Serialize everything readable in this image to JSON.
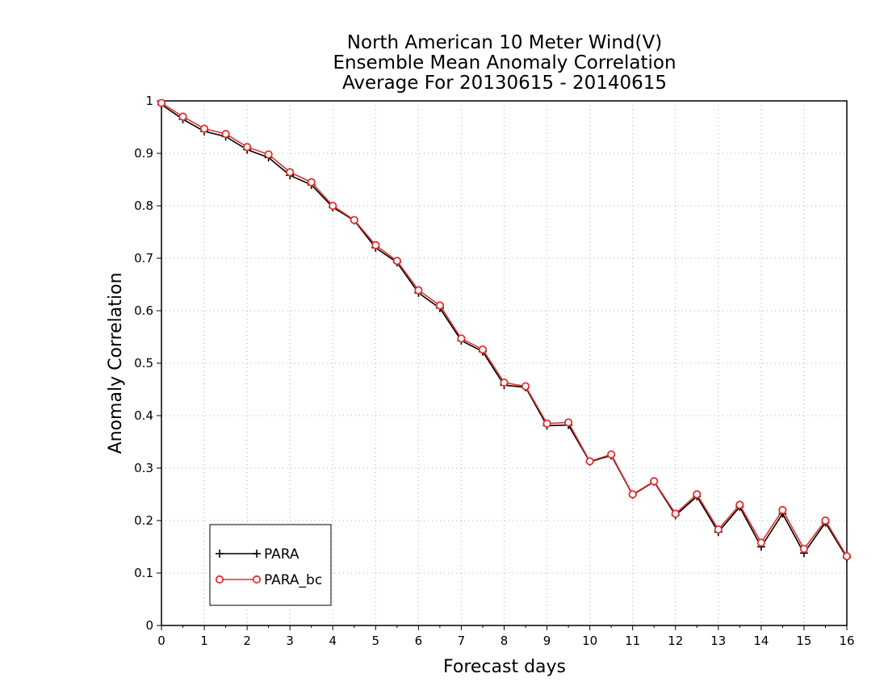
{
  "chart_data": {
    "type": "line",
    "title_lines": [
      "North American 10 Meter Wind(V)",
      "Ensemble Mean Anomaly Correlation",
      "Average For 20130615 - 20140615"
    ],
    "xlabel": "Forecast days",
    "ylabel": "Anomaly Correlation",
    "xlim": [
      0,
      16
    ],
    "ylim": [
      0,
      1
    ],
    "x_ticks": [
      0,
      1,
      2,
      3,
      4,
      5,
      6,
      7,
      8,
      9,
      10,
      11,
      12,
      13,
      14,
      15,
      16
    ],
    "y_ticks": [
      0,
      0.1,
      0.2,
      0.3,
      0.4,
      0.5,
      0.6,
      0.7,
      0.8,
      0.9,
      1
    ],
    "x_tick_labels": [
      "0",
      "1",
      "2",
      "3",
      "4",
      "5",
      "6",
      "7",
      "8",
      "9",
      "10",
      "11",
      "12",
      "13",
      "14",
      "15",
      "16"
    ],
    "y_tick_labels": [
      "0",
      "0.1",
      "0.2",
      "0.3",
      "0.4",
      "0.5",
      "0.6",
      "0.7",
      "0.8",
      "0.9",
      "1"
    ],
    "grid": true,
    "legend_position": "bottom-left",
    "x": [
      0,
      0.5,
      1,
      1.5,
      2,
      2.5,
      3,
      3.5,
      4,
      4.5,
      5,
      5.5,
      6,
      6.5,
      7,
      7.5,
      8,
      8.5,
      9,
      9.5,
      10,
      10.5,
      11,
      11.5,
      12,
      12.5,
      13,
      13.5,
      14,
      14.5,
      15,
      15.5,
      16
    ],
    "series": [
      {
        "name": "PARA",
        "color": "#000000",
        "marker": "plus",
        "values": [
          0.993,
          0.965,
          0.942,
          0.932,
          0.907,
          0.892,
          0.858,
          0.84,
          0.797,
          0.772,
          0.72,
          0.692,
          0.634,
          0.605,
          0.543,
          0.522,
          0.458,
          0.454,
          0.381,
          0.382,
          0.312,
          0.324,
          0.249,
          0.274,
          0.21,
          0.246,
          0.178,
          0.226,
          0.15,
          0.213,
          0.138,
          0.196,
          0.129
        ]
      },
      {
        "name": "PARA_bc",
        "color": "#e03030",
        "marker": "circle",
        "values": [
          0.996,
          0.97,
          0.947,
          0.937,
          0.912,
          0.898,
          0.864,
          0.845,
          0.8,
          0.773,
          0.725,
          0.695,
          0.639,
          0.61,
          0.547,
          0.526,
          0.463,
          0.456,
          0.385,
          0.387,
          0.313,
          0.326,
          0.25,
          0.275,
          0.213,
          0.25,
          0.183,
          0.23,
          0.158,
          0.22,
          0.146,
          0.2,
          0.132
        ]
      }
    ]
  }
}
